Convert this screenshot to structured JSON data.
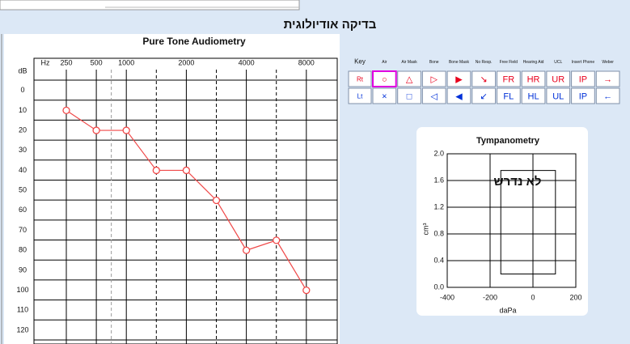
{
  "header": {
    "title": "בדיקה אודיולוגית"
  },
  "key_table": {
    "headers": [
      "Key",
      "Air",
      "Air Mask",
      "Bone",
      "Bone Mask",
      "No Resp.",
      "Free Field",
      "Hearing Aid",
      "UCL",
      "Insert Phone",
      "Weber"
    ],
    "rows": [
      [
        "Rt",
        "○",
        "△",
        "▷",
        "▶",
        "↘",
        "FR",
        "HR",
        "UR",
        "IP",
        "→"
      ],
      [
        "Lt",
        "×",
        "□",
        "◁",
        "◀",
        "↙",
        "FL",
        "HL",
        "UL",
        "IP",
        "←"
      ]
    ]
  },
  "chart_data": [
    {
      "type": "line",
      "title": "Pure Tone Audiometry",
      "xlabel": "Hz",
      "ylabel": "dB",
      "categories": [
        "250",
        "500",
        "1000",
        null,
        "2000",
        null,
        "4000",
        null,
        "8000"
      ],
      "series": [
        {
          "color": "#f04848",
          "values": [
            10,
            20,
            20,
            40,
            40,
            55,
            80,
            75,
            100
          ]
        }
      ],
      "ylim": [
        -10,
        120
      ],
      "yticks": [
        0,
        10,
        20,
        30,
        40,
        50,
        60,
        70,
        80,
        90,
        100,
        110,
        120
      ],
      "y_inverted": true,
      "grid": true
    },
    {
      "type": "line",
      "title": "Tympanometry",
      "xlabel": "daPa",
      "ylabel": "cm³",
      "annotation": "לא נדרש",
      "xlim": [
        -400,
        200
      ],
      "xticks": [
        -400,
        -200,
        0,
        200
      ],
      "ylim": [
        0,
        2
      ],
      "yticks": [
        {
          "value": 0,
          "label": "0.0"
        },
        0.4,
        0.8,
        1.2,
        1.6,
        {
          "value": 2,
          "label": "2.0"
        }
      ],
      "normal_region": {
        "x": [
          -150,
          105
        ],
        "y": [
          0.2,
          1.75
        ]
      },
      "grid": true,
      "series": []
    }
  ]
}
